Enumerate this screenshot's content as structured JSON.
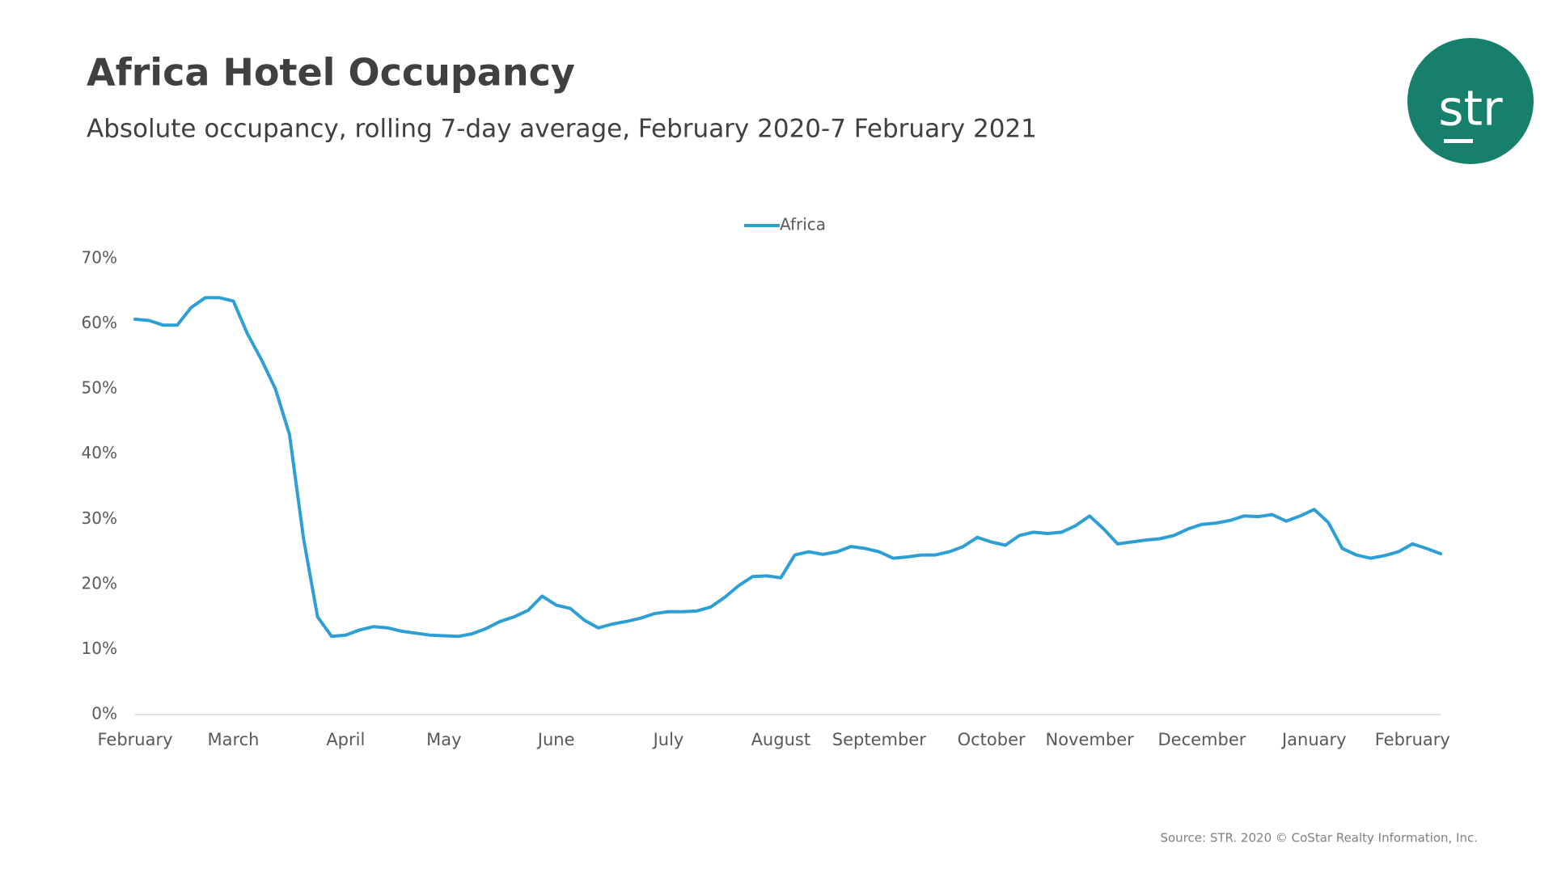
{
  "chart_data": {
    "type": "line",
    "title": "Africa Hotel Occupancy",
    "subtitle": "Absolute occupancy, rolling 7-day average, February 2020-7 February 2021",
    "logo": "str",
    "source": "Source: STR. 2020 © CoStar Realty Information, Inc.",
    "categories": [
      "February",
      null,
      null,
      null,
      null,
      null,
      null,
      "March",
      null,
      null,
      null,
      null,
      null,
      null,
      null,
      "April",
      null,
      null,
      null,
      null,
      null,
      null,
      "May",
      null,
      null,
      null,
      null,
      null,
      null,
      null,
      "June",
      null,
      null,
      null,
      null,
      null,
      null,
      null,
      "July",
      null,
      null,
      null,
      null,
      null,
      null,
      null,
      "August",
      null,
      null,
      null,
      null,
      null,
      null,
      "September",
      null,
      null,
      null,
      null,
      null,
      null,
      null,
      "October",
      null,
      null,
      null,
      null,
      null,
      null,
      "November",
      null,
      null,
      null,
      null,
      null,
      null,
      null,
      "December",
      null,
      null,
      null,
      null,
      null,
      null,
      null,
      "January",
      null,
      null,
      null,
      null,
      null,
      null,
      "February",
      null,
      null
    ],
    "series": [
      {
        "name": "Africa",
        "color": "#2e9fd4",
        "values": [
          60.7,
          60.5,
          59.8,
          59.8,
          62.5,
          64.0,
          64.0,
          63.5,
          58.5,
          54.5,
          50,
          43,
          27,
          15,
          12,
          12.2,
          13.0,
          13.5,
          13.3,
          12.8,
          12.5,
          12.2,
          12.1,
          12.0,
          12.4,
          13.2,
          14.3,
          15.0,
          16,
          18.2,
          16.8,
          16.3,
          14.5,
          13.3,
          13.9,
          14.3,
          14.8,
          15.5,
          15.8,
          15.8,
          15.9,
          16.5,
          18,
          19.8,
          21.2,
          21.3,
          21,
          24.5,
          25,
          24.6,
          25,
          25.8,
          25.5,
          25.0,
          24.0,
          24.2,
          24.5,
          24.5,
          25,
          25.8,
          27.2,
          26.5,
          26,
          27.5,
          28,
          27.8,
          28,
          29,
          30.5,
          28.5,
          26.2,
          26.5,
          26.8,
          27,
          27.5,
          28.5,
          29.2,
          29.4,
          29.8,
          30.5,
          30.4,
          30.7,
          29.7,
          30.5,
          31.5,
          29.5,
          25.5,
          24.5,
          24.0,
          24.4,
          25.0,
          26.2,
          25.5,
          24.7
        ]
      }
    ],
    "ylim": [
      0,
      70
    ],
    "yticks": [
      {
        "value": 0,
        "label": "0%"
      },
      {
        "value": 10,
        "label": "10%"
      },
      {
        "value": 20,
        "label": "20%"
      },
      {
        "value": 30,
        "label": "30%"
      },
      {
        "value": 40,
        "label": "40%"
      },
      {
        "value": 50,
        "label": "50%"
      },
      {
        "value": 60,
        "label": "60%"
      },
      {
        "value": 70,
        "label": "70%"
      }
    ],
    "grid": false,
    "legend": "top"
  }
}
